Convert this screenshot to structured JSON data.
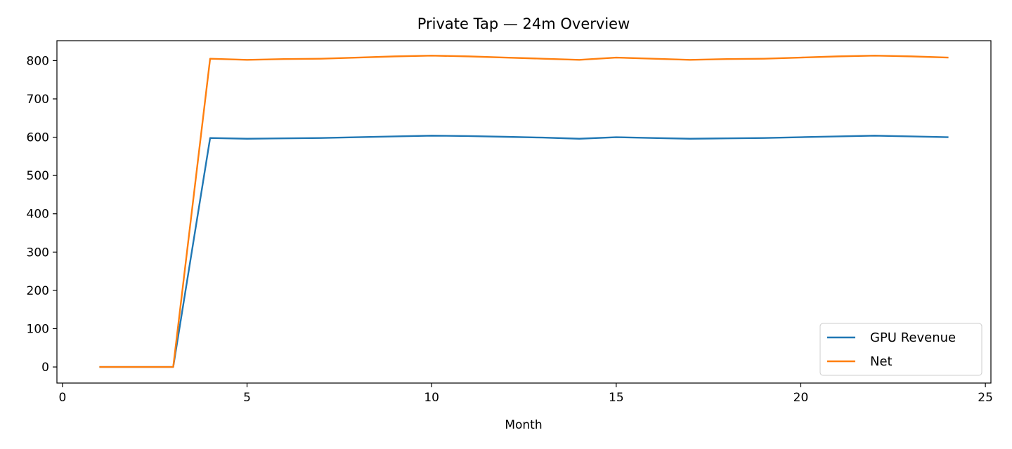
{
  "chart_data": {
    "type": "line",
    "title": "Private Tap — 24m Overview",
    "xlabel": "Month",
    "ylabel": "",
    "xlim": [
      -0.15,
      25.15
    ],
    "ylim": [
      -42,
      852
    ],
    "xticks": [
      0,
      5,
      10,
      15,
      20,
      25
    ],
    "yticks": [
      0,
      100,
      200,
      300,
      400,
      500,
      600,
      700,
      800
    ],
    "grid": false,
    "legend_position": "lower-right",
    "x": [
      1,
      2,
      3,
      4,
      5,
      6,
      7,
      8,
      9,
      10,
      11,
      12,
      13,
      14,
      15,
      16,
      17,
      18,
      19,
      20,
      21,
      22,
      23,
      24
    ],
    "series": [
      {
        "name": "GPU Revenue",
        "color": "#1f77b4",
        "values": [
          0,
          0,
          0,
          598,
          596,
          597,
          598,
          600,
          602,
          604,
          603,
          601,
          599,
          596,
          600,
          598,
          596,
          597,
          598,
          600,
          602,
          604,
          602,
          600
        ]
      },
      {
        "name": "Net",
        "color": "#ff7f0e",
        "values": [
          0,
          0,
          0,
          805,
          802,
          804,
          805,
          808,
          811,
          813,
          811,
          808,
          805,
          802,
          808,
          805,
          802,
          804,
          805,
          808,
          811,
          813,
          811,
          808
        ]
      }
    ]
  }
}
